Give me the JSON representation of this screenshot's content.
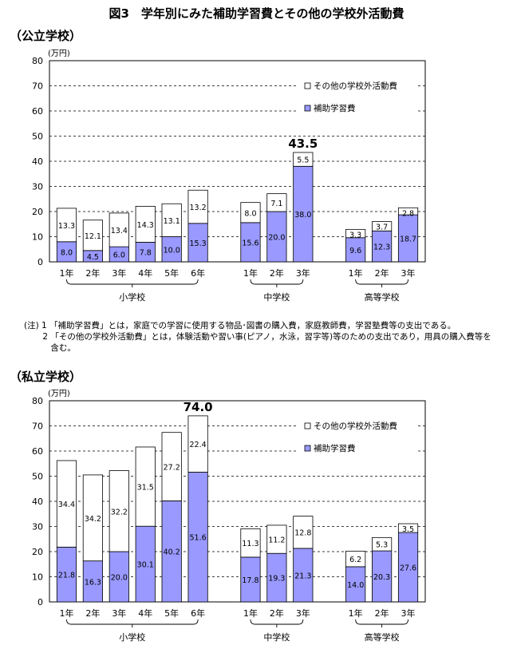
{
  "title": "図3　学年別にみた補助学習費とその他の学校外活動費",
  "colors": {
    "hojo": "#9999ff",
    "sonota": "#ffffff",
    "stroke": "#000000"
  },
  "notes": [
    {
      "prefix": "(注) 1 ",
      "text": "「補助学習費」とは，家庭での学習に使用する物品･図書の購入費，家庭教師費，学習塾費等の支出である。"
    },
    {
      "prefix": "       2 ",
      "text": "「その他の学校外活動費」とは，体験活動や習い事(ピアノ，水泳，習字等)等のための支出であり，用具の購入費等を含む。"
    }
  ],
  "chart_data": [
    {
      "type": "bar",
      "stacked": true,
      "section_label": "（公立学校）",
      "unit_label": "(万円)",
      "ylim": [
        0,
        80
      ],
      "yticks": [
        0,
        10,
        20,
        30,
        40,
        50,
        60,
        70,
        80
      ],
      "grid": true,
      "legend_position": "top-right",
      "categories": [
        "1年",
        "2年",
        "3年",
        "4年",
        "5年",
        "6年",
        "1年",
        "2年",
        "3年",
        "1年",
        "2年",
        "3年"
      ],
      "groups": [
        {
          "label": "小学校",
          "size": 6
        },
        {
          "label": "中学校",
          "size": 3
        },
        {
          "label": "高等学校",
          "size": 3
        }
      ],
      "series": [
        {
          "name": "補助学習費",
          "values": [
            8.0,
            4.5,
            6.0,
            7.8,
            10.0,
            15.3,
            15.6,
            20.0,
            38.0,
            9.6,
            12.3,
            18.7
          ]
        },
        {
          "name": "その他の学校外活動費",
          "values": [
            13.3,
            12.1,
            13.4,
            14.3,
            13.1,
            13.2,
            8.0,
            7.1,
            5.5,
            3.3,
            3.7,
            2.8
          ]
        }
      ],
      "legend_order": [
        "その他の学校外活動費",
        "補助学習費"
      ],
      "annotations": [
        {
          "category_index": 8,
          "text": "43.5"
        }
      ]
    },
    {
      "type": "bar",
      "stacked": true,
      "section_label": "（私立学校）",
      "unit_label": "(万円)",
      "ylim": [
        0,
        80
      ],
      "yticks": [
        0,
        10,
        20,
        30,
        40,
        50,
        60,
        70,
        80
      ],
      "grid": true,
      "legend_position": "top-right",
      "categories": [
        "1年",
        "2年",
        "3年",
        "4年",
        "5年",
        "6年",
        "1年",
        "2年",
        "3年",
        "1年",
        "2年",
        "3年"
      ],
      "groups": [
        {
          "label": "小学校",
          "size": 6
        },
        {
          "label": "中学校",
          "size": 3
        },
        {
          "label": "高等学校",
          "size": 3
        }
      ],
      "series": [
        {
          "name": "補助学習費",
          "values": [
            21.8,
            16.3,
            20.0,
            30.1,
            40.2,
            51.6,
            17.8,
            19.3,
            21.3,
            14.0,
            20.3,
            27.6
          ]
        },
        {
          "name": "その他の学校外活動費",
          "values": [
            34.4,
            34.2,
            32.2,
            31.5,
            27.2,
            22.4,
            11.3,
            11.2,
            12.8,
            6.2,
            5.3,
            3.5
          ]
        }
      ],
      "legend_order": [
        "その他の学校外活動費",
        "補助学習費"
      ],
      "annotations": [
        {
          "category_index": 5,
          "text": "74.0"
        }
      ]
    }
  ]
}
